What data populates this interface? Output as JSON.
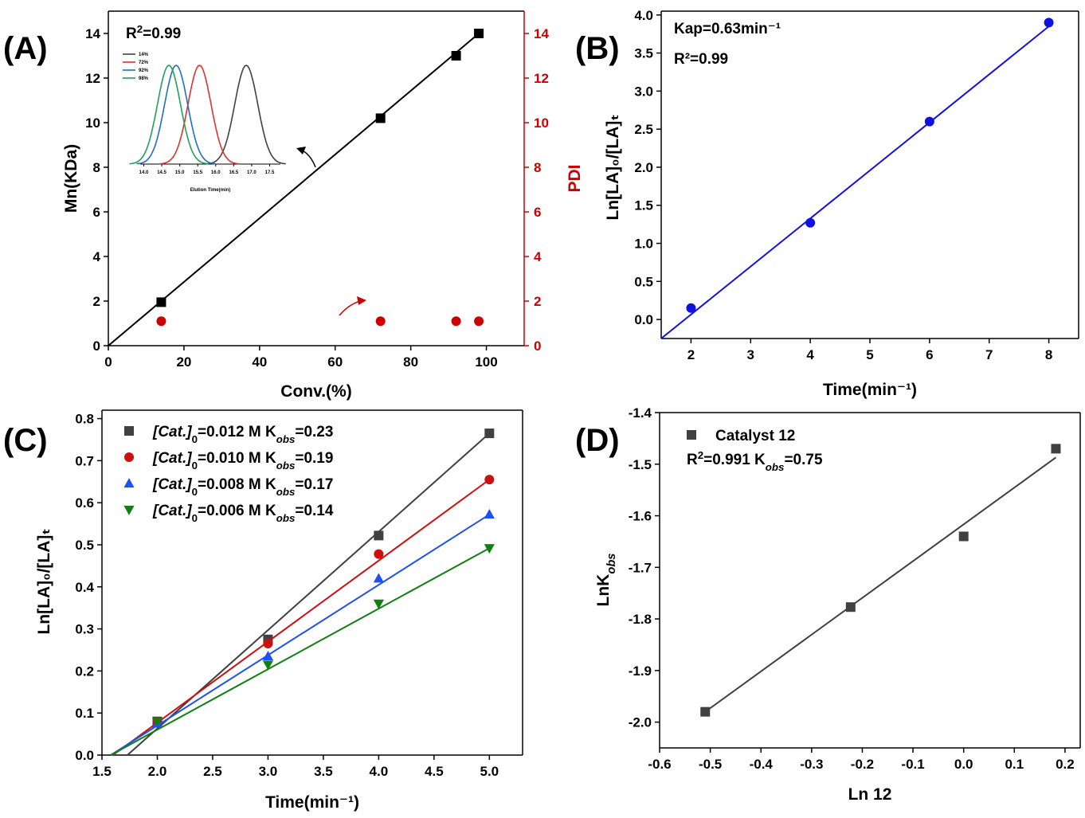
{
  "chart_data": [
    {
      "panel": "(A)",
      "type": "scatter",
      "xlabel": "Conv.(%)",
      "ylabel": "Mn(KDa)",
      "y2label": "PDI",
      "xlim": [
        0,
        110
      ],
      "ylim": [
        0,
        15
      ],
      "y2lim": [
        0,
        15
      ],
      "xticks": [
        0,
        20,
        40,
        60,
        80,
        100
      ],
      "yticks": [
        0,
        2,
        4,
        6,
        8,
        10,
        12,
        14
      ],
      "annotation": "R²=0.99",
      "colors": {
        "mn": "#000000",
        "pdi": "#cc0000"
      },
      "series": [
        {
          "axis": "left",
          "marker": "square",
          "x": [
            14,
            72,
            92,
            98
          ],
          "y": [
            1.95,
            10.2,
            13.0,
            14.0
          ]
        },
        {
          "axis": "right",
          "marker": "circle",
          "x": [
            14,
            72,
            92,
            98
          ],
          "y": [
            1.1,
            1.1,
            1.1,
            1.1
          ]
        }
      ],
      "fit": {
        "x": [
          0,
          98
        ],
        "y": [
          0,
          14.0
        ]
      },
      "inset": {
        "xlabel": "Elution Time(min)",
        "xticks": [
          "14.0",
          "14.5",
          "15.0",
          "15.5",
          "16.0",
          "16.5",
          "17.0",
          "17.5"
        ],
        "xlim": [
          13.9,
          17.8
        ],
        "legend": [
          "14%",
          "72%",
          "92%",
          "98%"
        ],
        "colors": [
          "#404040",
          "#e03030",
          "#1f6fc0",
          "#20a060"
        ],
        "peaks": [
          16.85,
          15.55,
          14.9,
          14.7
        ]
      }
    },
    {
      "panel": "(B)",
      "type": "scatter",
      "xlabel": "Time(min⁻¹)",
      "ylabel": "Ln[LA]₀/[LA]ₜ",
      "xlim": [
        1.5,
        8.5
      ],
      "ylim": [
        -0.25,
        4.05
      ],
      "xticks": [
        2,
        3,
        4,
        5,
        6,
        7,
        8
      ],
      "yticks": [
        0.0,
        0.5,
        1.0,
        1.5,
        2.0,
        2.5,
        3.0,
        3.5,
        4.0
      ],
      "annotations": [
        "Kap=0.63min⁻¹",
        "R²=0.99"
      ],
      "color": "#1010e0",
      "x": [
        2,
        4,
        6,
        8
      ],
      "y": [
        0.15,
        1.27,
        2.6,
        3.9
      ],
      "fit": {
        "x": [
          1.5,
          8
        ],
        "y": [
          -0.25,
          3.85
        ]
      }
    },
    {
      "panel": "(C)",
      "type": "scatter",
      "xlabel": "Time(min⁻¹)",
      "ylabel": "Ln[LA]₀/[LA]ₜ",
      "xlim": [
        1.5,
        5.3
      ],
      "ylim": [
        0,
        0.82
      ],
      "xticks": [
        1.5,
        2.0,
        2.5,
        3.0,
        3.5,
        4.0,
        4.5,
        5.0
      ],
      "yticks": [
        0.0,
        0.1,
        0.2,
        0.3,
        0.4,
        0.5,
        0.6,
        0.7,
        0.8
      ],
      "x": [
        2,
        3,
        4,
        5
      ],
      "series": [
        {
          "legend": [
            "[Cat.]",
            "0",
            "=0.012 M  K",
            "obs",
            "=0.23"
          ],
          "marker": "square",
          "color": "#404040",
          "y": [
            0.08,
            0.275,
            0.522,
            0.765
          ],
          "fit": [
            [
              1.73,
              0
            ],
            [
              5.0,
              0.765
            ]
          ]
        },
        {
          "legend": [
            "[Cat.]",
            "0",
            "=0.010 M  K",
            "obs",
            "=0.19"
          ],
          "marker": "circle",
          "color": "#cc1010",
          "y": [
            0.08,
            0.265,
            0.478,
            0.655
          ],
          "fit": [
            [
              1.6,
              0
            ],
            [
              5.0,
              0.655
            ]
          ]
        },
        {
          "legend": [
            "[Cat.]",
            "0",
            "=0.008 M  K",
            "obs",
            "=0.17"
          ],
          "marker": "triangle-up",
          "color": "#2050f0",
          "y": [
            0.075,
            0.235,
            0.42,
            0.572
          ],
          "fit": [
            [
              1.58,
              0
            ],
            [
              5.0,
              0.572
            ]
          ]
        },
        {
          "legend": [
            "[Cat.]",
            "0",
            "=0.006 M  K",
            "obs",
            "=0.14"
          ],
          "marker": "triangle-down",
          "color": "#108010",
          "y": [
            0.08,
            0.215,
            0.36,
            0.492
          ],
          "fit": [
            [
              1.58,
              0
            ],
            [
              5.0,
              0.492
            ]
          ]
        }
      ]
    },
    {
      "panel": "(D)",
      "type": "scatter",
      "xlabel": "Ln 12",
      "ylabel": "LnK",
      "ylabel_sub": "obs",
      "xlim": [
        -0.6,
        0.23
      ],
      "ylim": [
        -2.05,
        -1.4
      ],
      "xticks": [
        -0.6,
        -0.5,
        -0.4,
        -0.3,
        -0.2,
        -0.1,
        0.0,
        0.1,
        0.2
      ],
      "yticks": [
        -2.0,
        -1.9,
        -1.8,
        -1.7,
        -1.6,
        -1.5,
        -1.4
      ],
      "legend": "Catalyst  12",
      "annotation": [
        "R",
        "2",
        "=0.991 K",
        "obs",
        "=0.75"
      ],
      "color": "#404040",
      "x": [
        -0.51,
        -0.223,
        0.0,
        0.182
      ],
      "y": [
        -1.98,
        -1.777,
        -1.64,
        -1.47
      ],
      "fit": {
        "x": [
          -0.51,
          0.182
        ],
        "y": [
          -1.98,
          -1.487
        ]
      }
    }
  ]
}
